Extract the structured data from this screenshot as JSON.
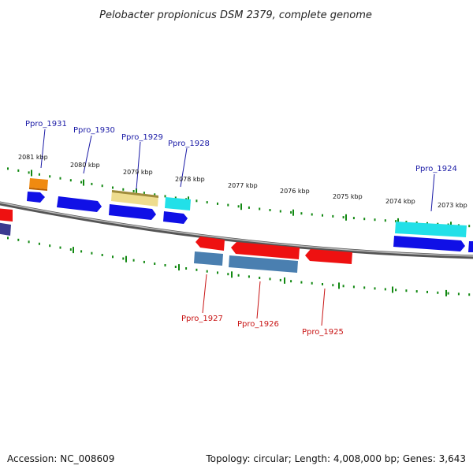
{
  "title": "Pelobacter propionicus DSM 2379, complete genome",
  "footer": {
    "accession": "Accession: NC_008609",
    "summary": "Topology: circular; Length: 4,008,000 bp; Genes: 3,643"
  },
  "colors": {
    "backbone": "#7f7f7f",
    "tick": "#118811",
    "label_top": "#1a1aa6",
    "label_bottom": "#c81414",
    "blue": "#1010e6",
    "red": "#ee1111",
    "steel": "#4a7fb0",
    "cyan": "#22e0e8",
    "khaki": "#eedc8e",
    "orange": "#f08a10",
    "navy": "#3a3a90"
  },
  "scale_labels": [
    {
      "text": "2081 kbp",
      "kbp": 2081
    },
    {
      "text": "2080 kbp",
      "kbp": 2080
    },
    {
      "text": "2079 kbp",
      "kbp": 2079
    },
    {
      "text": "2078 kbp",
      "kbp": 2078
    },
    {
      "text": "2077 kbp",
      "kbp": 2077
    },
    {
      "text": "2076 kbp",
      "kbp": 2076
    },
    {
      "text": "2075 kbp",
      "kbp": 2075
    },
    {
      "text": "2074 kbp",
      "kbp": 2074
    },
    {
      "text": "2073 kbp",
      "kbp": 2073
    }
  ],
  "gene_labels": [
    {
      "text": "Ppro_1931",
      "strand": "top"
    },
    {
      "text": "Ppro_1930",
      "strand": "top"
    },
    {
      "text": "Ppro_1929",
      "strand": "top"
    },
    {
      "text": "Ppro_1928",
      "strand": "top"
    },
    {
      "text": "Ppro_1924",
      "strand": "top"
    },
    {
      "text": "Ppro_1927",
      "strand": "bottom"
    },
    {
      "text": "Ppro_1926",
      "strand": "bottom"
    },
    {
      "text": "Ppro_1925",
      "strand": "bottom"
    }
  ]
}
